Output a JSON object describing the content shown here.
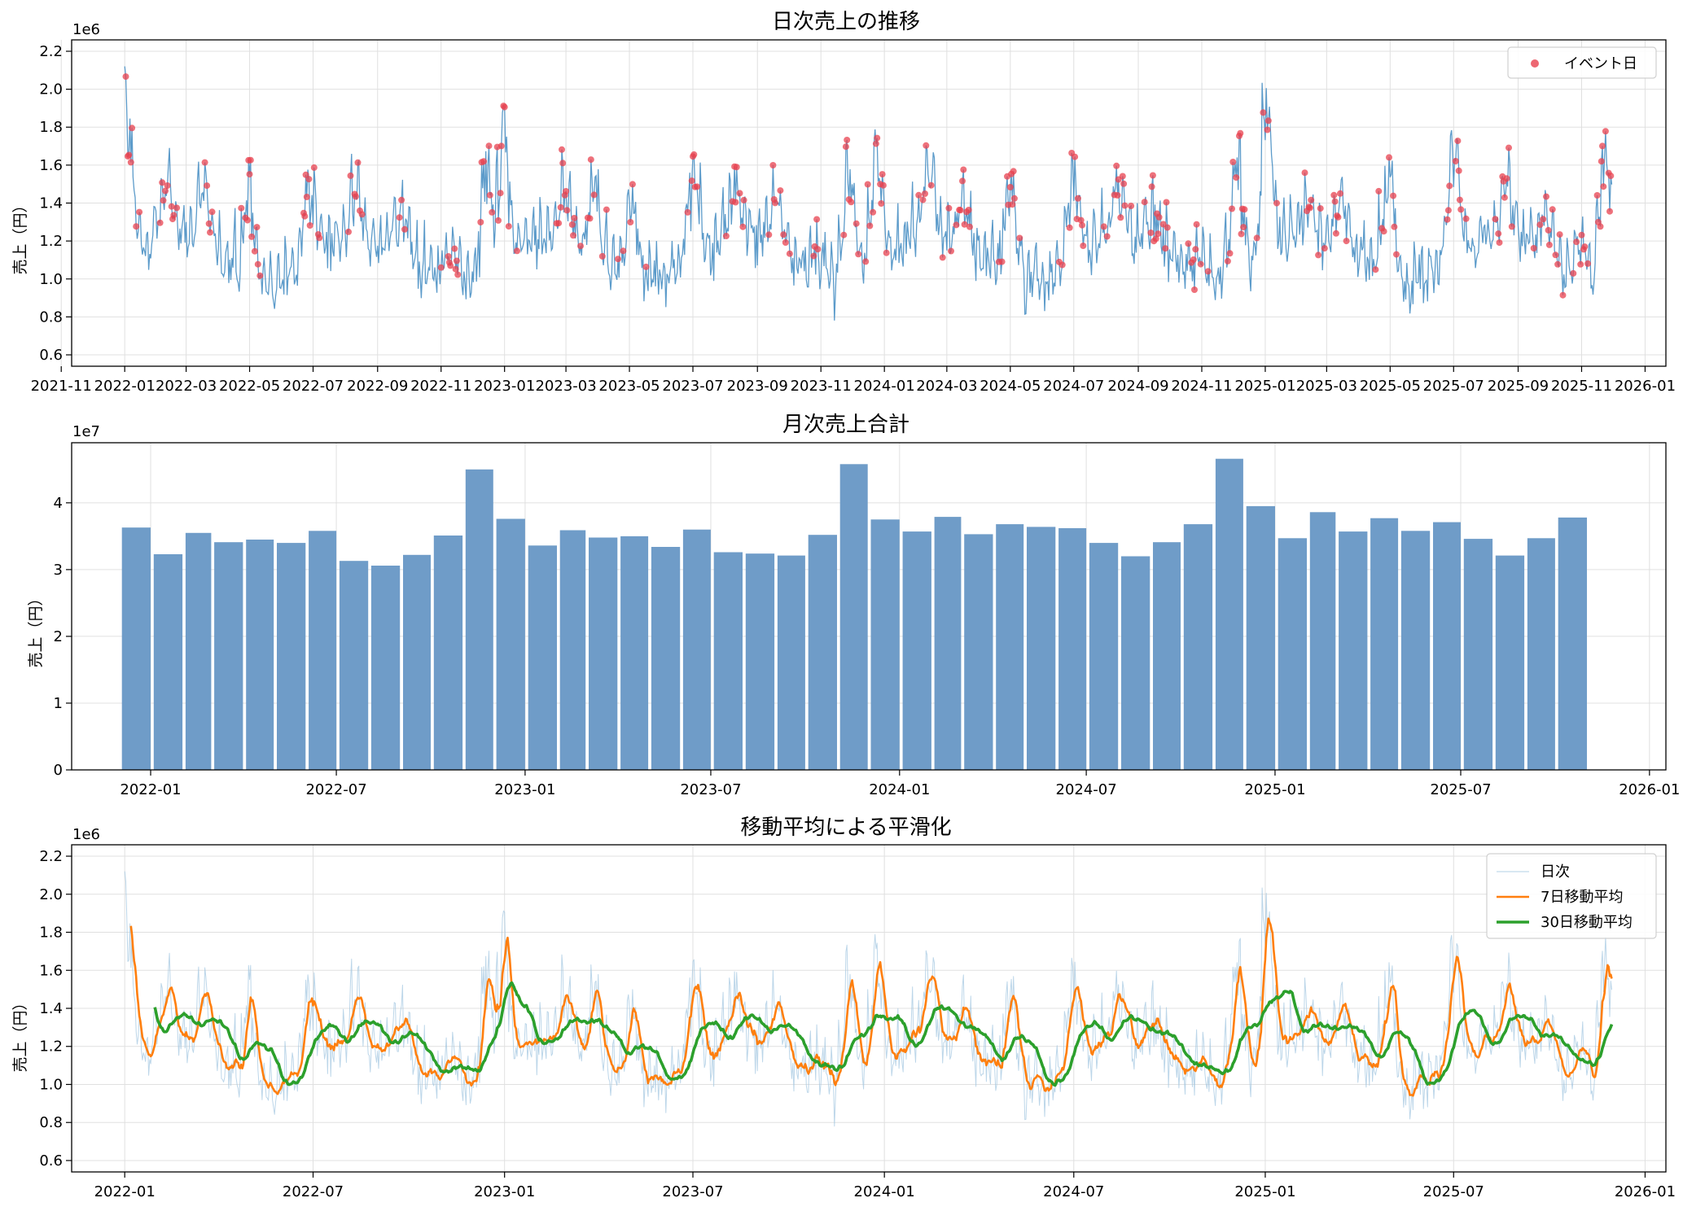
{
  "chart_data": [
    {
      "type": "line",
      "title": "日次売上の推移",
      "xlabel": "",
      "ylabel": "売上（円）",
      "y_offset_label": "1e6",
      "y_unit_multiplier": 1000000,
      "x_range": [
        "2021-11-01",
        "2026-01-01"
      ],
      "xlim": [
        "2021-11-11",
        "2026-01-21"
      ],
      "ylim": [
        0.54,
        2.26
      ],
      "x_ticks": [
        "2021-11",
        "2022-01",
        "2022-03",
        "2022-05",
        "2022-07",
        "2022-09",
        "2022-11",
        "2023-01",
        "2023-03",
        "2023-05",
        "2023-07",
        "2023-09",
        "2023-11",
        "2024-01",
        "2024-03",
        "2024-05",
        "2024-07",
        "2024-09",
        "2024-11",
        "2025-01",
        "2025-03",
        "2025-05",
        "2025-07",
        "2025-09",
        "2025-11",
        "2026-01"
      ],
      "y_ticks": [
        "0.6",
        "0.8",
        "1.0",
        "1.2",
        "1.4",
        "1.6",
        "1.8",
        "2.0",
        "2.2"
      ],
      "date_range": [
        "2022-01-01",
        "2025-11-30"
      ],
      "grid": true,
      "legend_position": "top-right",
      "series": [
        {
          "name": "",
          "kind": "line",
          "color": "#4a90c4",
          "description": "daily sales, noisy, range ~0.6–2.1 (×1e6)"
        },
        {
          "name": "イベント日",
          "kind": "scatter",
          "color": "#e8414f"
        }
      ],
      "event_clusters": [
        {
          "center": "2022-01-02",
          "peak": 2.13
        },
        {
          "center": "2022-02-10",
          "peak": 1.53
        },
        {
          "center": "2022-03-18",
          "peak": 1.56
        },
        {
          "center": "2022-05-01",
          "peak": 1.71
        },
        {
          "center": "2022-06-28",
          "peak": 1.74
        },
        {
          "center": "2022-08-12",
          "peak": 1.47
        },
        {
          "center": "2022-09-26",
          "peak": 1.45
        },
        {
          "center": "2022-11-10",
          "peak": 1.39
        },
        {
          "center": "2022-12-15",
          "peak": 1.88
        },
        {
          "center": "2022-12-30",
          "peak": 2.04
        },
        {
          "center": "2023-02-28",
          "peak": 1.5
        },
        {
          "center": "2023-03-28",
          "peak": 1.64
        },
        {
          "center": "2023-05-03",
          "peak": 1.69
        },
        {
          "center": "2023-07-01",
          "peak": 1.74
        },
        {
          "center": "2023-08-10",
          "peak": 1.52
        },
        {
          "center": "2023-09-20",
          "peak": 1.52
        },
        {
          "center": "2023-10-28",
          "peak": 1.4
        },
        {
          "center": "2023-11-28",
          "peak": 1.86
        },
        {
          "center": "2023-12-25",
          "peak": 1.88
        },
        {
          "center": "2024-02-13",
          "peak": 1.64
        },
        {
          "center": "2024-03-18",
          "peak": 1.5
        },
        {
          "center": "2024-05-01",
          "peak": 1.81
        },
        {
          "center": "2024-06-30",
          "peak": 1.74
        },
        {
          "center": "2024-08-12",
          "peak": 1.55
        },
        {
          "center": "2024-09-18",
          "peak": 1.37
        },
        {
          "center": "2024-10-28",
          "peak": 1.36
        },
        {
          "center": "2024-12-05",
          "peak": 1.95
        },
        {
          "center": "2025-01-02",
          "peak": 2.1
        },
        {
          "center": "2025-02-12",
          "peak": 1.44
        },
        {
          "center": "2025-03-15",
          "peak": 1.47
        },
        {
          "center": "2025-04-30",
          "peak": 1.84
        },
        {
          "center": "2025-07-01",
          "peak": 1.84
        },
        {
          "center": "2025-08-20",
          "peak": 1.54
        },
        {
          "center": "2025-09-30",
          "peak": 1.43
        },
        {
          "center": "2025-11-01",
          "peak": 1.46
        },
        {
          "center": "2025-11-24",
          "peak": 1.92
        }
      ]
    },
    {
      "type": "bar",
      "title": "月次売上合計",
      "xlabel": "",
      "ylabel": "売上（円）",
      "y_offset_label": "1e7",
      "y_unit_multiplier": 10000000,
      "xlim": [
        "2021-10-16",
        "2026-01-17"
      ],
      "ylim": [
        0,
        4.9
      ],
      "x_ticks": [
        "2022-01",
        "2022-07",
        "2023-01",
        "2023-07",
        "2024-01",
        "2024-07",
        "2025-01",
        "2025-07",
        "2026-01"
      ],
      "y_ticks": [
        "0",
        "1",
        "2",
        "3",
        "4"
      ],
      "grid": true,
      "color": "#6f9cc8",
      "categories": [
        "2021-12",
        "2022-01",
        "2022-02",
        "2022-03",
        "2022-04",
        "2022-05",
        "2022-06",
        "2022-07",
        "2022-08",
        "2022-09",
        "2022-10",
        "2022-11",
        "2022-12",
        "2023-01",
        "2023-02",
        "2023-03",
        "2023-04",
        "2023-05",
        "2023-06",
        "2023-07",
        "2023-08",
        "2023-09",
        "2023-10",
        "2023-11",
        "2023-12",
        "2024-01",
        "2024-02",
        "2024-03",
        "2024-04",
        "2024-05",
        "2024-06",
        "2024-07",
        "2024-08",
        "2024-09",
        "2024-10",
        "2024-11",
        "2024-12",
        "2025-01",
        "2025-02",
        "2025-03",
        "2025-04",
        "2025-05",
        "2025-06",
        "2025-07",
        "2025-08",
        "2025-09",
        "2025-10"
      ],
      "values": [
        3.63,
        3.23,
        3.55,
        3.41,
        3.45,
        3.4,
        3.58,
        3.13,
        3.06,
        3.22,
        3.51,
        4.5,
        3.76,
        3.36,
        3.59,
        3.48,
        3.5,
        3.34,
        3.6,
        3.26,
        3.24,
        3.21,
        3.52,
        4.58,
        3.75,
        3.57,
        3.79,
        3.53,
        3.68,
        3.64,
        3.62,
        3.4,
        3.2,
        3.41,
        3.68,
        4.66,
        3.95,
        3.47,
        3.86,
        3.57,
        3.77,
        3.58,
        3.71,
        3.46,
        3.21,
        3.47,
        3.78
      ]
    },
    {
      "type": "line",
      "title": "移動平均による平滑化",
      "xlabel": "",
      "ylabel": "売上（円）",
      "y_offset_label": "1e6",
      "y_unit_multiplier": 1000000,
      "xlim": [
        "2021-11-11",
        "2026-01-21"
      ],
      "ylim": [
        0.54,
        2.26
      ],
      "x_ticks": [
        "2022-01",
        "2022-07",
        "2023-01",
        "2023-07",
        "2024-01",
        "2024-07",
        "2025-01",
        "2025-07",
        "2026-01"
      ],
      "y_ticks": [
        "0.6",
        "0.8",
        "1.0",
        "1.2",
        "1.4",
        "1.6",
        "1.8",
        "2.0",
        "2.2"
      ],
      "grid": true,
      "legend_position": "top-right",
      "series": [
        {
          "name": "日次",
          "color": "#9fc5e0"
        },
        {
          "name": "7日移動平均",
          "color": "#ff7f0e"
        },
        {
          "name": "30日移動平均",
          "color": "#2ca02c"
        }
      ]
    }
  ]
}
